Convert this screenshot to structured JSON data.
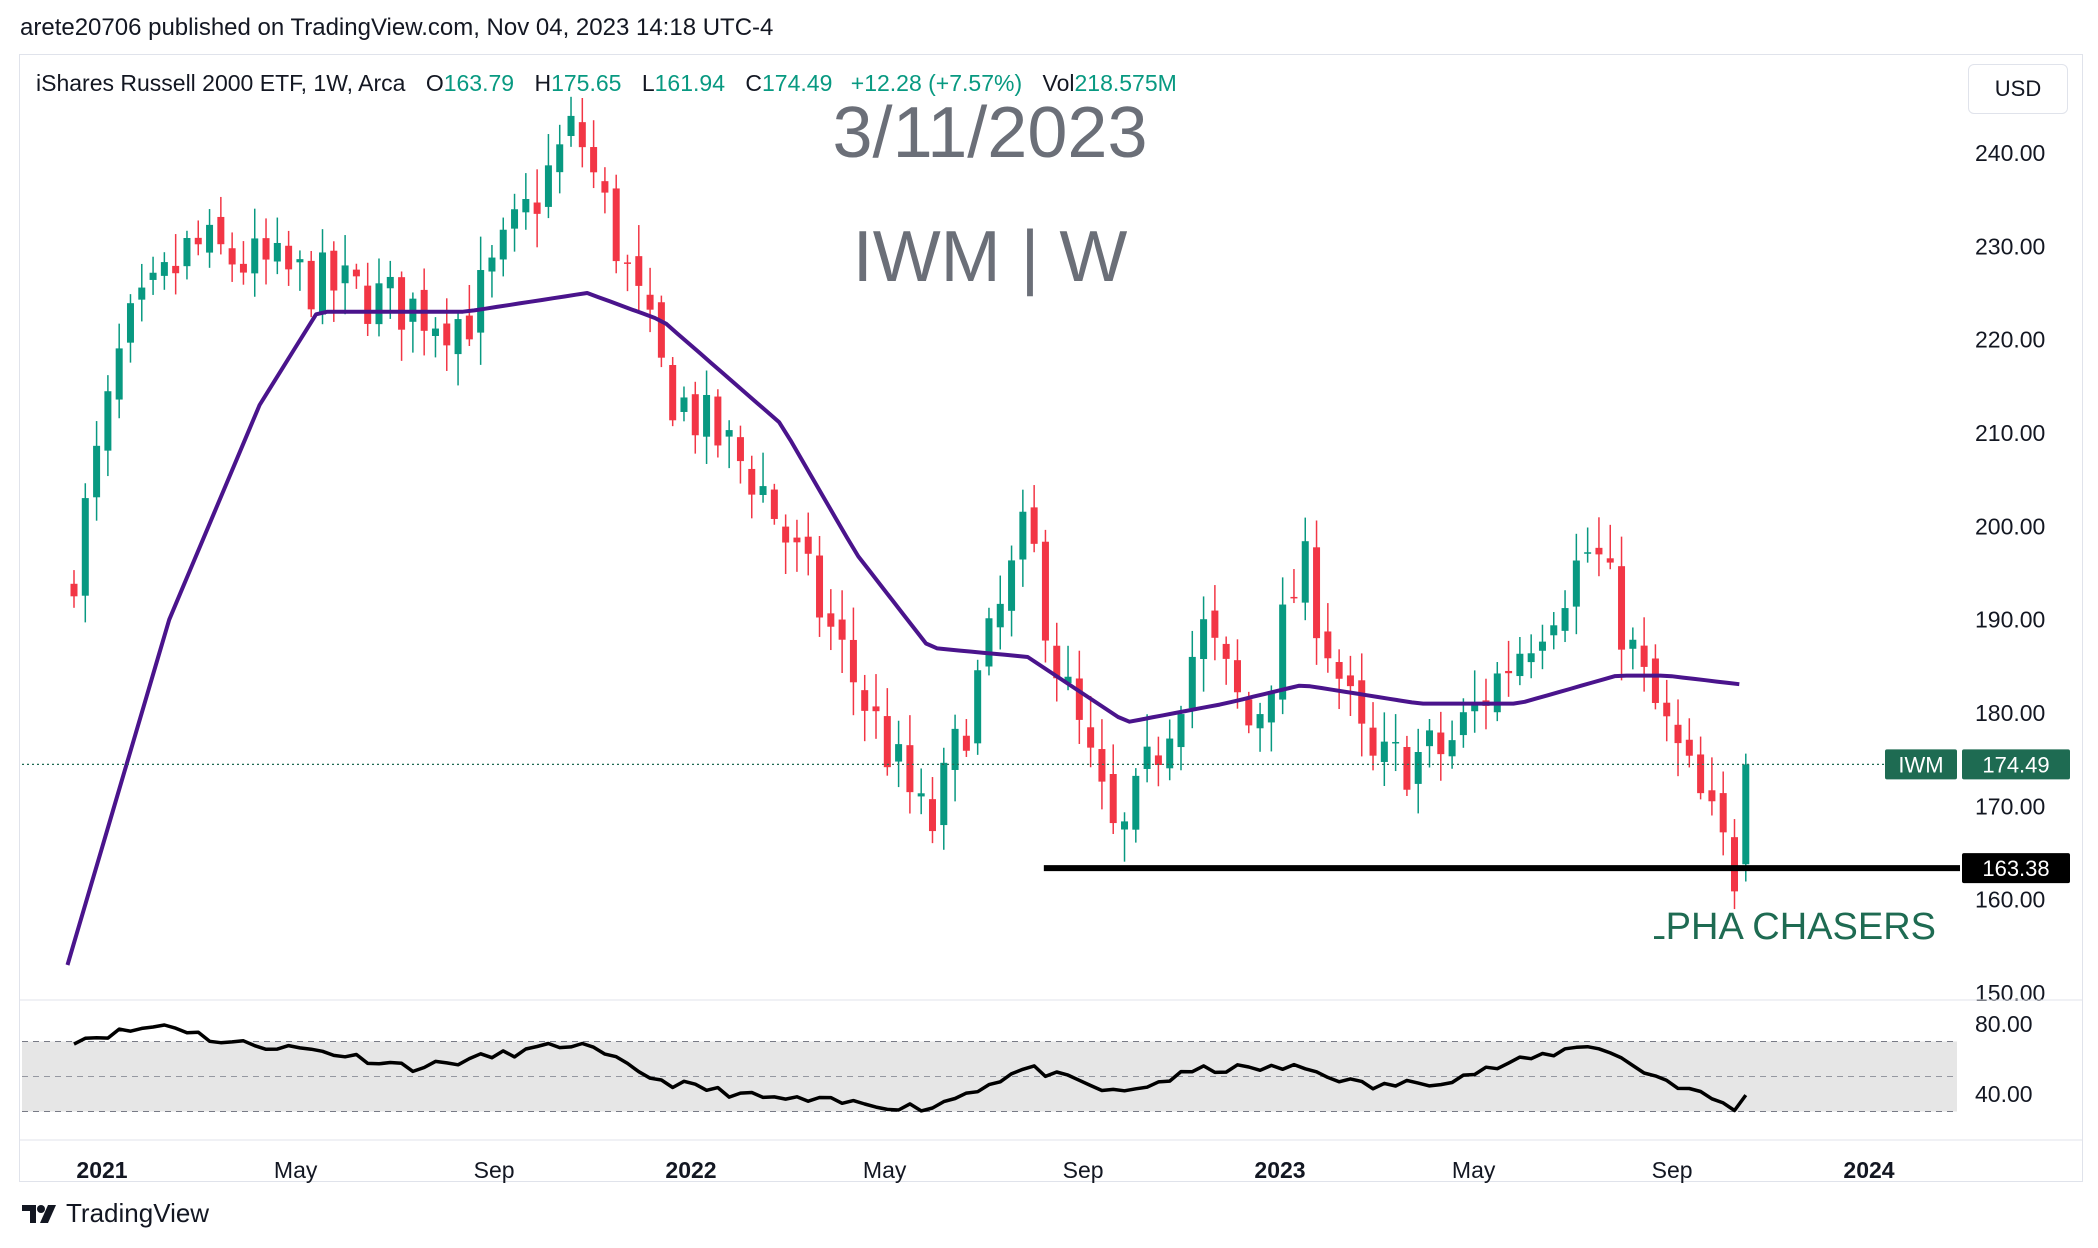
{
  "header": {
    "published_text": "arete20706 published on TradingView.com, Nov 04, 2023 14:18 UTC-4"
  },
  "legend": {
    "instrument": "iShares Russell 2000 ETF, 1W, Arca",
    "open_label": "O",
    "open": "163.79",
    "high_label": "H",
    "high": "175.65",
    "low_label": "L",
    "low": "161.94",
    "close_label": "C",
    "close": "174.49",
    "change": "+12.28 (+7.57%)",
    "vol_label": "Vol",
    "vol": "218.575M"
  },
  "currency": "USD",
  "watermark": {
    "date": "3/11/2023",
    "symbol": "IWM | W"
  },
  "annotation_text": "ALPHA CHASERS",
  "price_labels": {
    "symbol": "IWM",
    "last": "174.49",
    "support": "163.38"
  },
  "footer": {
    "brand": "TradingView"
  },
  "colors": {
    "up": "#089981",
    "down": "#f23645",
    "ma": "#4a148c",
    "rsi": "#000000",
    "support": "#000000"
  },
  "chart_data": [
    {
      "type": "candlestick",
      "title": "iShares Russell 2000 ETF, 1W, Arca",
      "series": [
        {
          "name": "IWM",
          "x": [
            "2021-01-01",
            "2021-02-01",
            "2021-03-15",
            "2021-06-01",
            "2021-09-01",
            "2021-11-08",
            "2022-01-03",
            "2022-03-01",
            "2022-05-01",
            "2022-06-15",
            "2022-08-15",
            "2022-09-01",
            "2022-10-10",
            "2022-12-01",
            "2023-01-01",
            "2023-02-01",
            "2023-03-15",
            "2023-05-01",
            "2023-07-31",
            "2023-09-01",
            "2023-10-27",
            "2023-11-03"
          ],
          "close": [
            196,
            220,
            230,
            226,
            222,
            243,
            215,
            205,
            183,
            167,
            200,
            186,
            165,
            189,
            178,
            196,
            174,
            176,
            198,
            183,
            163,
            174.49
          ]
        },
        {
          "name": "MA",
          "x": [
            "2020-12-28",
            "2021-03-01",
            "2021-04-26",
            "2021-06-01",
            "2021-09-01",
            "2021-11-15",
            "2022-01-01",
            "2022-03-15",
            "2022-05-01",
            "2022-06-15",
            "2022-08-15",
            "2022-10-15",
            "2022-12-15",
            "2023-02-01",
            "2023-04-15",
            "2023-06-15",
            "2023-08-15",
            "2023-09-15",
            "2023-11-03"
          ],
          "values": [
            153,
            190,
            213,
            223,
            223,
            225,
            222,
            211,
            197,
            187,
            186,
            179,
            181,
            183,
            181,
            181,
            184,
            184,
            183
          ]
        }
      ],
      "ylim": [
        150,
        245
      ],
      "yticks": [
        "240.00",
        "230.00",
        "220.00",
        "210.00",
        "200.00",
        "190.00",
        "180.00",
        "170.00",
        "160.00",
        "150.00"
      ],
      "support_level": 163.38,
      "last_price": 174.49
    },
    {
      "type": "line",
      "series": [
        {
          "name": "RSI",
          "x": [
            "2021-01-01",
            "2021-03-01",
            "2021-04-01",
            "2021-06-01",
            "2021-08-01",
            "2021-11-08",
            "2022-01-01",
            "2022-03-01",
            "2022-06-15",
            "2022-08-15",
            "2022-10-10",
            "2022-12-01",
            "2023-02-01",
            "2023-03-15",
            "2023-05-01",
            "2023-07-31",
            "2023-09-01",
            "2023-10-27",
            "2023-11-03"
          ],
          "values": [
            71,
            80,
            70,
            65,
            55,
            69,
            47,
            38,
            32,
            55,
            40,
            54,
            55,
            44,
            48,
            69,
            53,
            32,
            38
          ]
        }
      ],
      "yticks": [
        "80.00",
        "40.00"
      ],
      "band": [
        30,
        70
      ],
      "ylim": [
        25,
        85
      ]
    }
  ],
  "x_axis": {
    "ticks": [
      "2021",
      "May",
      "Sep",
      "2022",
      "May",
      "Sep",
      "2023",
      "May",
      "Sep",
      "2024"
    ]
  }
}
